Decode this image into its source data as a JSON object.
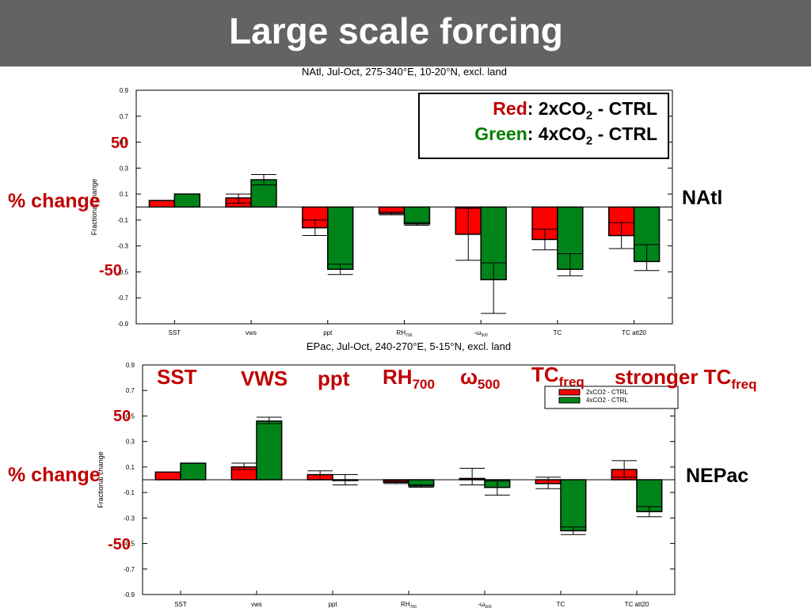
{
  "slide": {
    "title": "Large scale forcing"
  },
  "colors": {
    "red": "#ff0000",
    "green": "#00841a",
    "annotation": "#c00000",
    "title_bar": "#636363"
  },
  "overlay": {
    "percent_change_label": "% change",
    "plus50": "50",
    "minus50": "-50",
    "region_top": "NAtl",
    "region_bottom": "NEPac",
    "legend_red_word": "Red",
    "legend_green_word": "Green",
    "legend_line1_rest_a": ": 2xCO",
    "legend_line1_rest_b": " - CTRL",
    "legend_line2_rest_a": ": 4xCO",
    "legend_line2_rest_b": " - CTRL",
    "legend_sub": "2",
    "cat_sst": "SST",
    "cat_vws": "VWS",
    "cat_ppt": "ppt",
    "cat_rh": "RH",
    "cat_rh_sub": "700",
    "cat_omega": "ω",
    "cat_omega_sub": "500",
    "cat_tc": "TC",
    "cat_tc_sub": "freq",
    "cat_stronger": "stronger TC",
    "cat_stronger_sub": "freq"
  },
  "chart_data": [
    {
      "type": "bar",
      "title": "NAtl, Jul-Oct, 275-340°E, 10-20°N, excl. land",
      "ylabel": "Fractional change",
      "ylim": [
        -0.9,
        0.9
      ],
      "yticks": [
        0.9,
        0.7,
        0.5,
        0.3,
        0.1,
        -0.1,
        -0.3,
        -0.5,
        -0.7,
        -0.9
      ],
      "categories": [
        "SST",
        "vws",
        "ppt",
        "RH700",
        "-ω500",
        "TC",
        "TC att20"
      ],
      "category_labels": [
        {
          "main": "SST",
          "sub": ""
        },
        {
          "main": "vws",
          "sub": ""
        },
        {
          "main": "ppt",
          "sub": ""
        },
        {
          "main": "RH",
          "sub": "700"
        },
        {
          "main": "-ω",
          "sub": "500"
        },
        {
          "main": "TC",
          "sub": ""
        },
        {
          "main": "TC att20",
          "sub": ""
        }
      ],
      "series": [
        {
          "name": "2xCO2 - CTRL",
          "color": "#ff0000",
          "values": [
            0.05,
            0.07,
            -0.16,
            -0.05,
            -0.21,
            -0.25,
            -0.22
          ],
          "error_low": [
            0.05,
            0.03,
            -0.22,
            -0.06,
            -0.41,
            -0.33,
            -0.32
          ],
          "error_high": [
            0.05,
            0.1,
            -0.1,
            -0.04,
            -0.01,
            -0.17,
            -0.12
          ]
        },
        {
          "name": "4xCO2 - CTRL",
          "color": "#00841a",
          "values": [
            0.1,
            0.21,
            -0.48,
            -0.13,
            -0.56,
            -0.48,
            -0.42
          ],
          "error_low": [
            0.1,
            0.17,
            -0.52,
            -0.14,
            -0.82,
            -0.53,
            -0.49
          ],
          "error_high": [
            0.1,
            0.25,
            -0.44,
            -0.12,
            -0.43,
            -0.36,
            -0.29
          ]
        }
      ],
      "legend": {
        "shown": false
      }
    },
    {
      "type": "bar",
      "title": "EPac, Jul-Oct, 240-270°E, 5-15°N, excl. land",
      "ylabel": "Fractional change",
      "ylim": [
        -0.9,
        0.9
      ],
      "yticks": [
        0.9,
        0.7,
        0.5,
        0.3,
        0.1,
        -0.1,
        -0.3,
        -0.5,
        -0.7,
        -0.9
      ],
      "categories": [
        "SST",
        "vws",
        "ppt",
        "RH700",
        "-ω500",
        "TC",
        "TC att20"
      ],
      "category_labels": [
        {
          "main": "SST",
          "sub": ""
        },
        {
          "main": "vws",
          "sub": ""
        },
        {
          "main": "ppt",
          "sub": ""
        },
        {
          "main": "RH",
          "sub": "700"
        },
        {
          "main": "-ω",
          "sub": "500"
        },
        {
          "main": "TC",
          "sub": ""
        },
        {
          "main": "TC att20",
          "sub": ""
        }
      ],
      "series": [
        {
          "name": "2xCO2 - CTRL",
          "color": "#ff0000",
          "values": [
            0.06,
            0.1,
            0.04,
            -0.02,
            0.01,
            -0.03,
            0.08
          ],
          "error_low": [
            0.06,
            0.08,
            0.0,
            -0.03,
            -0.04,
            -0.07,
            0.02
          ],
          "error_high": [
            0.06,
            0.13,
            0.07,
            -0.01,
            0.09,
            0.02,
            0.15
          ]
        },
        {
          "name": "4xCO2 - CTRL",
          "color": "#00841a",
          "values": [
            0.13,
            0.46,
            0.0,
            -0.05,
            -0.06,
            -0.4,
            -0.25
          ],
          "error_low": [
            0.13,
            0.44,
            -0.04,
            -0.06,
            -0.12,
            -0.43,
            -0.29
          ],
          "error_high": [
            0.13,
            0.49,
            0.04,
            -0.04,
            -0.01,
            -0.37,
            -0.21
          ]
        }
      ],
      "legend": {
        "shown": true,
        "position": "top-right"
      }
    }
  ]
}
